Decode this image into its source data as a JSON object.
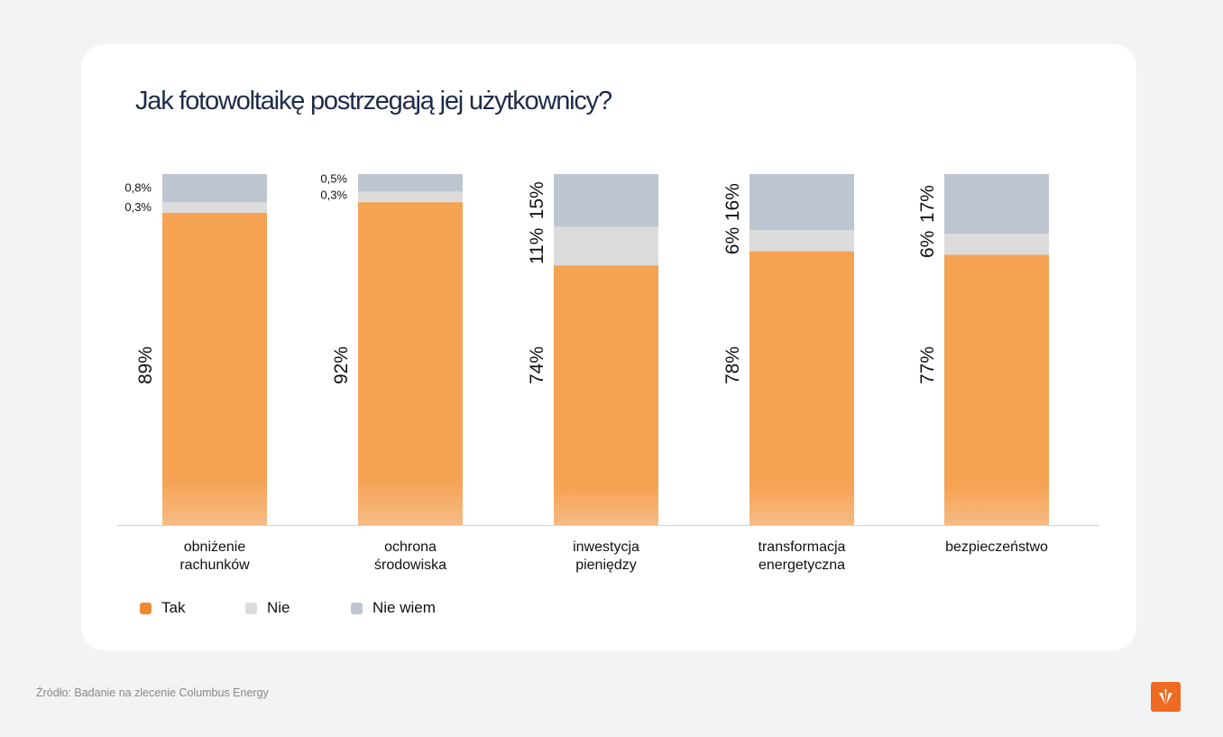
{
  "chart_data": {
    "type": "bar",
    "stacked": true,
    "title": "Jak fotowoltaikę postrzegają jej użytkownicy?",
    "categories": [
      "obniżenie\nrachunków",
      "ochrona\nśrodowiska",
      "inwestycja\npieniędzy",
      "transformacja\nenergetyczna",
      "bezpieczeństwo"
    ],
    "series": [
      {
        "name": "Tak",
        "color": "#f5a252",
        "values": [
          89,
          92,
          74,
          78,
          77
        ],
        "labels": [
          "89%",
          "92%",
          "74%",
          "78%",
          "77%"
        ]
      },
      {
        "name": "Nie",
        "color": "#dcdcdc",
        "values": [
          0.3,
          0.3,
          11,
          6,
          6
        ],
        "labels": [
          "0,3%",
          "0,3%",
          "11%",
          "6%",
          "6%"
        ]
      },
      {
        "name": "Nie wiem",
        "color": "#bec5d0",
        "values": [
          0.8,
          0.5,
          15,
          16,
          17
        ],
        "labels": [
          "0,8%",
          "0,5%",
          "15%",
          "16%",
          "17%"
        ]
      }
    ],
    "ylim": [
      0,
      100
    ],
    "grid": false,
    "legend": "bottom-left"
  },
  "footer": {
    "source": "Źródło: Badanie na zlecenie Columbus Energy"
  },
  "logo_icon": "columbus-energy-logo"
}
